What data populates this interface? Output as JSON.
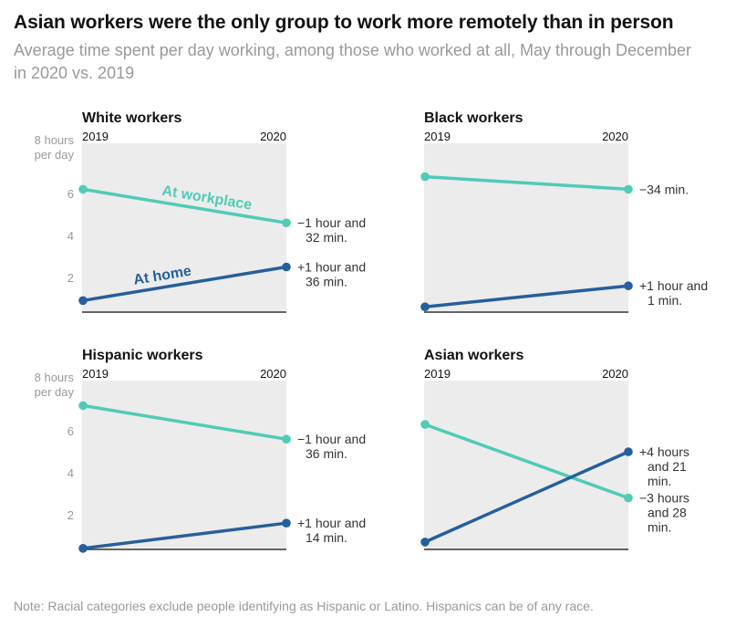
{
  "title": "Asian workers were the only group to work more remotely than in person",
  "subtitle": "Average time spent per day working, among those who worked at all, May through December in 2020 vs. 2019",
  "note": "Note: Racial categories exclude people identifying as Hispanic or Latino. Hispanics can be of any race.",
  "colors": {
    "workplace": "#4fcbb6",
    "home": "#255f9c",
    "panel_bg": "#ececec",
    "axis": "#333333",
    "muted": "#999999"
  },
  "chart_data": [
    {
      "type": "line",
      "title": "White workers",
      "x": [
        "2019",
        "2020"
      ],
      "ylim": [
        0,
        8
      ],
      "yticks": [
        "8 hours|per day",
        "6",
        "4",
        "2"
      ],
      "series": [
        {
          "name": "At workplace",
          "key": "workplace",
          "values": [
            6.2,
            4.6
          ],
          "change_label": [
            "−1 hour and",
            "32 min."
          ]
        },
        {
          "name": "At home",
          "key": "home",
          "values": [
            0.9,
            2.5
          ],
          "change_label": [
            "+1 hour and",
            "36 min."
          ]
        }
      ]
    },
    {
      "type": "line",
      "title": "Black workers",
      "x": [
        "2019",
        "2020"
      ],
      "ylim": [
        0,
        8
      ],
      "yticks": [],
      "series": [
        {
          "key": "workplace",
          "values": [
            6.8,
            6.2
          ],
          "change_label": [
            "−34 min."
          ]
        },
        {
          "key": "home",
          "values": [
            0.6,
            1.6
          ],
          "change_label": [
            "+1 hour and",
            "1 min."
          ]
        }
      ]
    },
    {
      "type": "line",
      "title": "Hispanic workers",
      "x": [
        "2019",
        "2020"
      ],
      "ylim": [
        0,
        8
      ],
      "yticks": [
        "8 hours|per day",
        "6",
        "4",
        "2"
      ],
      "series": [
        {
          "key": "workplace",
          "values": [
            7.2,
            5.6
          ],
          "change_label": [
            "−1 hour and",
            "36 min."
          ]
        },
        {
          "key": "home",
          "values": [
            0.4,
            1.6
          ],
          "change_label": [
            "+1 hour and",
            "14 min."
          ]
        }
      ]
    },
    {
      "type": "line",
      "title": "Asian workers",
      "x": [
        "2019",
        "2020"
      ],
      "ylim": [
        0,
        8
      ],
      "yticks": [],
      "series": [
        {
          "key": "workplace",
          "values": [
            6.3,
            2.8
          ],
          "change_label": [
            "−3 hours",
            "and 28",
            "min."
          ]
        },
        {
          "key": "home",
          "values": [
            0.7,
            5.0
          ],
          "change_label": [
            "+4 hours",
            "and 21",
            "min."
          ]
        }
      ]
    }
  ]
}
